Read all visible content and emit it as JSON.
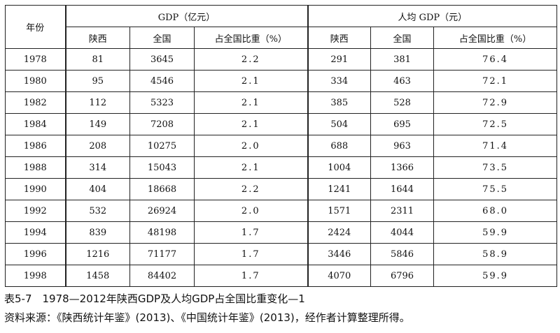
{
  "table": {
    "year_header": "年份",
    "group1_header": "GDP（亿元）",
    "group2_header": "人均 GDP（元）",
    "sub_headers": [
      "陕西",
      "全国",
      "占全国比重（%）",
      "陕西",
      "全国",
      "占全国比重（%）"
    ],
    "rows": [
      [
        "1978",
        "81",
        "3645",
        "2.2",
        "291",
        "381",
        "76.4"
      ],
      [
        "1980",
        "95",
        "4546",
        "2.1",
        "334",
        "463",
        "72.1"
      ],
      [
        "1982",
        "112",
        "5323",
        "2.1",
        "385",
        "528",
        "72.9"
      ],
      [
        "1984",
        "149",
        "7208",
        "2.1",
        "504",
        "695",
        "72.5"
      ],
      [
        "1986",
        "208",
        "10275",
        "2.0",
        "688",
        "963",
        "71.4"
      ],
      [
        "1988",
        "314",
        "15043",
        "2.1",
        "1004",
        "1366",
        "73.5"
      ],
      [
        "1990",
        "404",
        "18668",
        "2.2",
        "1241",
        "1644",
        "75.5"
      ],
      [
        "1992",
        "532",
        "26924",
        "2.0",
        "1571",
        "2311",
        "68.0"
      ],
      [
        "1994",
        "839",
        "48198",
        "1.7",
        "2424",
        "4044",
        "59.9"
      ],
      [
        "1996",
        "1216",
        "71177",
        "1.7",
        "3446",
        "5846",
        "58.9"
      ],
      [
        "1998",
        "1458",
        "84402",
        "1.7",
        "4070",
        "6796",
        "59.9"
      ]
    ]
  },
  "caption": "表5-7　1978—2012年陕西GDP及人均GDP占全国比重变化—1",
  "source": "资料来源：《陕西统计年鉴》(2013)、《中国统计年鉴》(2013)，经作者计算整理所得。"
}
